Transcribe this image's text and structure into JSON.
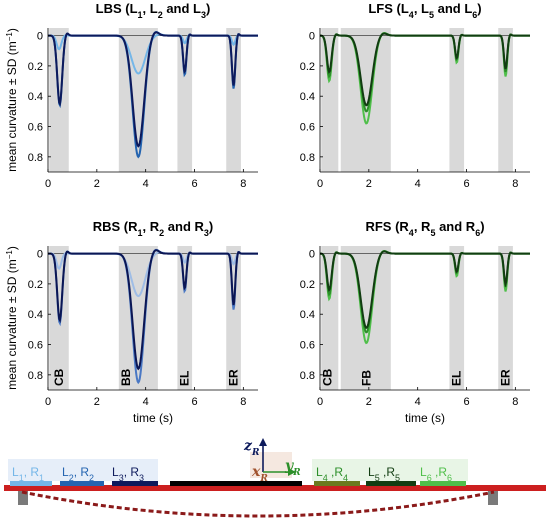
{
  "ylabel": "mean curvature ± SD (m",
  "ylabel_exp": "−1",
  "ylabel_close": ")",
  "colors": {
    "left_light": "#74b6e8",
    "left_mid": "#2464b0",
    "left_dark": "#0d1a5c",
    "right_light": "#9fbde6",
    "right_mid": "#4a78c4",
    "right_dark": "#0b1654",
    "fs_light": "#4fbf4a",
    "fs_mid": "#2d8f2a",
    "fs_dark": "#123d12",
    "shade": "#d9d9d9",
    "beam": "#cc1f1f",
    "dashed": "#8b1a1a"
  },
  "chart_data": [
    {
      "type": "line",
      "id": "lbs",
      "title_main": "LBS (L",
      "title_parts": [
        {
          "t": "LBS (L",
          "s": false
        },
        {
          "t": "1",
          "s": true
        },
        {
          "t": ", L",
          "s": false
        },
        {
          "t": "2",
          "s": true
        },
        {
          "t": " and L",
          "s": false
        },
        {
          "t": "3",
          "s": true
        },
        {
          "t": ")",
          "s": false
        }
      ],
      "xlim": [
        0,
        8.6
      ],
      "ylim": [
        -0.05,
        0.9
      ],
      "xticks": [
        "0",
        "2",
        "4",
        "6",
        "8"
      ],
      "yticks": [
        "0",
        "0.2",
        "0.4",
        "0.6",
        "0.8"
      ],
      "shaded": [
        [
          0.05,
          0.85
        ],
        [
          2.9,
          4.5
        ],
        [
          5.3,
          5.9
        ],
        [
          7.3,
          7.9
        ]
      ],
      "event_labels": [],
      "series": [
        {
          "color_key": "left_light",
          "peaks": [
            [
              0.45,
              0.09,
              0.17
            ],
            [
              3.7,
              0.25,
              0.5
            ],
            [
              5.6,
              0.05,
              0.12
            ],
            [
              7.6,
              0.06,
              0.12
            ]
          ]
        },
        {
          "color_key": "left_mid",
          "peaks": [
            [
              0.48,
              0.46,
              0.18
            ],
            [
              3.7,
              0.8,
              0.42
            ],
            [
              5.6,
              0.26,
              0.12
            ],
            [
              7.6,
              0.35,
              0.12
            ]
          ]
        },
        {
          "color_key": "left_dark",
          "peaks": [
            [
              0.48,
              0.45,
              0.18
            ],
            [
              3.7,
              0.73,
              0.42
            ],
            [
              5.6,
              0.24,
              0.12
            ],
            [
              7.6,
              0.33,
              0.12
            ]
          ]
        }
      ]
    },
    {
      "type": "line",
      "id": "lfs",
      "title_parts": [
        {
          "t": "LFS (L",
          "s": false
        },
        {
          "t": "4",
          "s": true
        },
        {
          "t": ", L",
          "s": false
        },
        {
          "t": "5",
          "s": true
        },
        {
          "t": " and L",
          "s": false
        },
        {
          "t": "6",
          "s": true
        },
        {
          "t": ")",
          "s": false
        }
      ],
      "xlim": [
        0,
        8.6
      ],
      "ylim": [
        -0.05,
        0.9
      ],
      "xticks": [
        "0",
        "2",
        "4",
        "6",
        "8"
      ],
      "yticks": [
        "0",
        "0.2",
        "0.4",
        "0.6",
        "0.8"
      ],
      "shaded": [
        [
          0.05,
          0.75
        ],
        [
          0.85,
          2.9
        ],
        [
          5.3,
          5.9
        ],
        [
          7.3,
          7.9
        ]
      ],
      "event_labels": [],
      "series": [
        {
          "color_key": "fs_light",
          "peaks": [
            [
              0.38,
              0.3,
              0.17
            ],
            [
              1.9,
              0.58,
              0.42
            ],
            [
              5.6,
              0.18,
              0.12
            ],
            [
              7.6,
              0.27,
              0.12
            ]
          ]
        },
        {
          "color_key": "fs_mid",
          "peaks": [
            [
              0.38,
              0.27,
              0.17
            ],
            [
              1.9,
              0.5,
              0.42
            ],
            [
              5.6,
              0.16,
              0.12
            ],
            [
              7.6,
              0.24,
              0.12
            ]
          ]
        },
        {
          "color_key": "fs_dark",
          "peaks": [
            [
              0.38,
              0.24,
              0.17
            ],
            [
              1.9,
              0.46,
              0.42
            ],
            [
              5.6,
              0.15,
              0.12
            ],
            [
              7.6,
              0.22,
              0.12
            ]
          ]
        }
      ]
    },
    {
      "type": "line",
      "id": "rbs",
      "title_parts": [
        {
          "t": "RBS (R",
          "s": false
        },
        {
          "t": "1",
          "s": true
        },
        {
          "t": ", R",
          "s": false
        },
        {
          "t": "2",
          "s": true
        },
        {
          "t": " and R",
          "s": false
        },
        {
          "t": "3",
          "s": true
        },
        {
          "t": ")",
          "s": false
        }
      ],
      "xlim": [
        0,
        8.6
      ],
      "ylim": [
        -0.05,
        0.9
      ],
      "xticks": [
        "0",
        "2",
        "4",
        "6",
        "8"
      ],
      "yticks": [
        "0",
        "0.2",
        "0.4",
        "0.6",
        "0.8"
      ],
      "shaded": [
        [
          0.05,
          0.85
        ],
        [
          2.9,
          4.5
        ],
        [
          5.3,
          5.9
        ],
        [
          7.3,
          7.9
        ]
      ],
      "event_labels": [
        {
          "label": "CB",
          "x": 0.45
        },
        {
          "label": "BB",
          "x": 3.2
        },
        {
          "label": "EL",
          "x": 5.6
        },
        {
          "label": "ER",
          "x": 7.6
        }
      ],
      "series": [
        {
          "color_key": "right_light",
          "peaks": [
            [
              0.45,
              0.1,
              0.17
            ],
            [
              3.7,
              0.28,
              0.5
            ],
            [
              5.6,
              0.06,
              0.12
            ],
            [
              7.6,
              0.07,
              0.12
            ]
          ]
        },
        {
          "color_key": "right_mid",
          "peaks": [
            [
              0.48,
              0.46,
              0.18
            ],
            [
              3.7,
              0.85,
              0.42
            ],
            [
              5.6,
              0.25,
              0.12
            ],
            [
              7.6,
              0.37,
              0.12
            ]
          ]
        },
        {
          "color_key": "right_dark",
          "peaks": [
            [
              0.48,
              0.44,
              0.18
            ],
            [
              3.7,
              0.76,
              0.42
            ],
            [
              5.6,
              0.23,
              0.12
            ],
            [
              7.6,
              0.34,
              0.12
            ]
          ]
        }
      ]
    },
    {
      "type": "line",
      "id": "rfs",
      "title_parts": [
        {
          "t": "RFS (R",
          "s": false
        },
        {
          "t": "4",
          "s": true
        },
        {
          "t": ", R",
          "s": false
        },
        {
          "t": "5",
          "s": true
        },
        {
          "t": " and R",
          "s": false
        },
        {
          "t": "6",
          "s": true
        },
        {
          "t": ")",
          "s": false
        }
      ],
      "xlim": [
        0,
        8.6
      ],
      "ylim": [
        -0.05,
        0.9
      ],
      "xticks": [
        "0",
        "2",
        "4",
        "6",
        "8"
      ],
      "yticks": [
        "0",
        "0.2",
        "0.4",
        "0.6",
        "0.8"
      ],
      "shaded": [
        [
          0.05,
          0.75
        ],
        [
          0.85,
          2.9
        ],
        [
          5.3,
          5.9
        ],
        [
          7.3,
          7.9
        ]
      ],
      "event_labels": [
        {
          "label": "CB",
          "x": 0.3
        },
        {
          "label": "FB",
          "x": 1.9
        },
        {
          "label": "EL",
          "x": 5.6
        },
        {
          "label": "ER",
          "x": 7.6
        }
      ],
      "series": [
        {
          "color_key": "fs_light",
          "peaks": [
            [
              0.38,
              0.3,
              0.17
            ],
            [
              1.9,
              0.59,
              0.42
            ],
            [
              5.6,
              0.15,
              0.12
            ],
            [
              7.6,
              0.25,
              0.12
            ]
          ]
        },
        {
          "color_key": "fs_mid",
          "peaks": [
            [
              0.38,
              0.27,
              0.17
            ],
            [
              1.9,
              0.52,
              0.42
            ],
            [
              5.6,
              0.13,
              0.12
            ],
            [
              7.6,
              0.22,
              0.12
            ]
          ]
        },
        {
          "color_key": "fs_dark",
          "peaks": [
            [
              0.38,
              0.24,
              0.17
            ],
            [
              1.9,
              0.49,
              0.42
            ],
            [
              5.6,
              0.12,
              0.12
            ],
            [
              7.6,
              0.2,
              0.12
            ]
          ]
        }
      ]
    }
  ],
  "xlabel": "time (s)",
  "diagram": {
    "axis_z": "z",
    "axis_z_sub": "R",
    "axis_x": "x",
    "axis_x_sub": "R",
    "axis_y": "y",
    "axis_y_sub": "R",
    "left_labels": [
      {
        "main": "L",
        "sub": "1",
        "sep": ", R",
        "sub2": "1",
        "color_key": "left_light"
      },
      {
        "main": "L",
        "sub": "2",
        "sep": ", R",
        "sub2": "2",
        "color_key": "left_mid"
      },
      {
        "main": "L",
        "sub": "3",
        "sep": ", R",
        "sub2": "3",
        "color_key": "left_dark"
      }
    ],
    "right_labels": [
      {
        "main": "L",
        "sub": "4",
        "sep": " ,R",
        "sub2": "4",
        "color_key": "fs_mid"
      },
      {
        "main": "L",
        "sub": "5",
        "sep": " ,R",
        "sub2": "5",
        "color_key": "fs_dark"
      },
      {
        "main": "L",
        "sub": "6",
        "sep": " ,R",
        "sub2": "6",
        "color_key": "fs_light"
      }
    ]
  }
}
